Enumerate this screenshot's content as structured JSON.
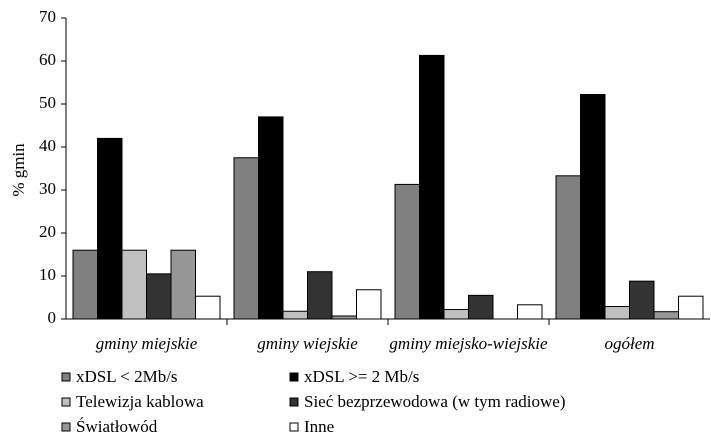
{
  "chart_data": {
    "type": "bar",
    "y_label": "% gmin",
    "categories": [
      "gminy miejskie",
      "gminy wiejskie",
      "gminy miejsko-wiejskie",
      "ogółem"
    ],
    "series": [
      {
        "name": "xDSL < 2Mb/s",
        "color": "#808080",
        "values": [
          16,
          37.5,
          31.3,
          33.3
        ]
      },
      {
        "name": "xDSL >= 2 Mb/s",
        "color": "#000000",
        "values": [
          42,
          47,
          61.3,
          52.2
        ]
      },
      {
        "name": "Telewizja kablowa",
        "color": "#c0c0c0",
        "values": [
          16,
          1.8,
          2.2,
          2.9
        ]
      },
      {
        "name": "Sieć bezprzewodowa (w tym radiowe)",
        "color": "#333333",
        "values": [
          10.5,
          11,
          5.5,
          8.8
        ]
      },
      {
        "name": "Światłowód",
        "color": "#969696",
        "values": [
          16,
          0.7,
          0,
          1.7
        ]
      },
      {
        "name": "Inne",
        "color": "#ffffff",
        "values": [
          5.3,
          6.8,
          3.3,
          5.3
        ]
      }
    ],
    "ylim": [
      0,
      70
    ],
    "yticks": [
      0,
      10,
      20,
      30,
      40,
      50,
      60,
      70
    ],
    "grid": false
  }
}
